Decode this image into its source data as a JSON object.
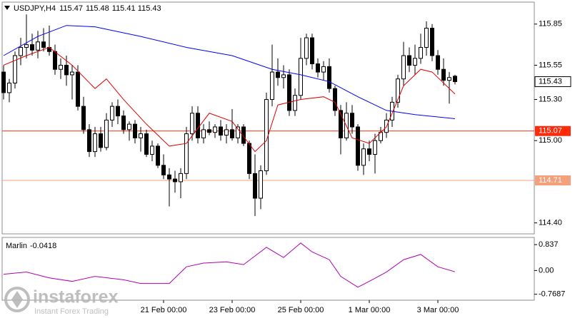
{
  "chart_data": {
    "type": "candlestick",
    "symbol": "USDJPY,H4",
    "categories": [
      null,
      null,
      null,
      null,
      null,
      null,
      null,
      null,
      null,
      null,
      null,
      null,
      null,
      null,
      null,
      null,
      null,
      null,
      null,
      null,
      null,
      null,
      null,
      null,
      null,
      null,
      null,
      null,
      "21 Feb 00:00",
      null,
      null,
      null,
      null,
      null,
      null,
      null,
      null,
      null,
      null,
      null,
      "23 Feb 00:00",
      null,
      null,
      null,
      null,
      null,
      null,
      null,
      null,
      null,
      null,
      null,
      "25 Feb 00:00",
      null,
      null,
      null,
      null,
      null,
      null,
      null,
      null,
      null,
      null,
      null,
      "1 Mar 00:00",
      null,
      null,
      null,
      null,
      null,
      null,
      null,
      null,
      null,
      null,
      null,
      "3 Mar 00:00",
      null,
      null,
      null
    ],
    "ohlc": [
      [
        115.5,
        115.55,
        115.3,
        115.35
      ],
      [
        115.35,
        115.45,
        115.28,
        115.42
      ],
      [
        115.42,
        115.65,
        115.38,
        115.62
      ],
      [
        115.62,
        115.75,
        115.55,
        115.68
      ],
      [
        115.68,
        115.92,
        115.6,
        115.7
      ],
      [
        115.7,
        115.78,
        115.62,
        115.66
      ],
      [
        115.66,
        115.8,
        115.6,
        115.72
      ],
      [
        115.72,
        115.82,
        115.65,
        115.68
      ],
      [
        115.68,
        115.84,
        115.62,
        115.65
      ],
      [
        115.65,
        115.7,
        115.48,
        115.52
      ],
      [
        115.52,
        115.6,
        115.45,
        115.55
      ],
      [
        115.55,
        115.62,
        115.4,
        115.48
      ],
      [
        115.48,
        115.55,
        115.3,
        115.5
      ],
      [
        115.5,
        115.55,
        115.22,
        115.25
      ],
      [
        115.25,
        115.32,
        115.05,
        115.08
      ],
      [
        115.08,
        115.12,
        114.88,
        114.92
      ],
      [
        114.92,
        115.1,
        114.88,
        115.05
      ],
      [
        115.05,
        115.1,
        114.92,
        114.95
      ],
      [
        114.95,
        115.2,
        114.93,
        115.15
      ],
      [
        115.15,
        115.28,
        115.1,
        115.25
      ],
      [
        115.25,
        115.3,
        115.12,
        115.18
      ],
      [
        115.18,
        115.22,
        115.05,
        115.08
      ],
      [
        115.08,
        115.14,
        115.0,
        115.12
      ],
      [
        115.12,
        115.15,
        114.98,
        115.02
      ],
      [
        115.02,
        115.1,
        114.92,
        115.05
      ],
      [
        115.05,
        115.08,
        114.88,
        114.9
      ],
      [
        114.9,
        115.0,
        114.85,
        114.96
      ],
      [
        114.96,
        114.98,
        114.8,
        114.82
      ],
      [
        114.82,
        114.9,
        114.72,
        114.75
      ],
      [
        114.75,
        114.8,
        114.52,
        114.72
      ],
      [
        114.72,
        114.78,
        114.62,
        114.7
      ],
      [
        114.7,
        114.8,
        114.58,
        114.76
      ],
      [
        114.76,
        115.1,
        114.72,
        115.05
      ],
      [
        115.05,
        115.25,
        115.0,
        115.2
      ],
      [
        115.2,
        115.25,
        114.98,
        115.02
      ],
      [
        115.02,
        115.12,
        114.98,
        115.08
      ],
      [
        115.08,
        115.14,
        115.04,
        115.06
      ],
      [
        115.06,
        115.12,
        115.02,
        115.1
      ],
      [
        115.1,
        115.15,
        115.0,
        115.04
      ],
      [
        115.04,
        115.12,
        114.98,
        115.08
      ],
      [
        115.08,
        115.23,
        115.0,
        115.02
      ],
      [
        115.02,
        115.12,
        114.98,
        115.1
      ],
      [
        115.1,
        115.12,
        114.96,
        114.98
      ],
      [
        114.98,
        115.0,
        114.72,
        114.76
      ],
      [
        114.76,
        114.9,
        114.45,
        114.58
      ],
      [
        114.58,
        114.82,
        114.5,
        114.78
      ],
      [
        114.78,
        115.35,
        114.75,
        115.3
      ],
      [
        115.3,
        115.7,
        115.25,
        115.5
      ],
      [
        115.5,
        115.6,
        115.4,
        115.46
      ],
      [
        115.46,
        115.55,
        115.38,
        115.48
      ],
      [
        115.48,
        115.52,
        115.18,
        115.22
      ],
      [
        115.22,
        115.38,
        115.18,
        115.33
      ],
      [
        115.33,
        115.75,
        115.3,
        115.6
      ],
      [
        115.6,
        115.78,
        115.55,
        115.75
      ],
      [
        115.75,
        115.78,
        115.52,
        115.56
      ],
      [
        115.56,
        115.6,
        115.46,
        115.5
      ],
      [
        115.5,
        115.58,
        115.44,
        115.54
      ],
      [
        115.54,
        115.6,
        115.35,
        115.38
      ],
      [
        115.38,
        115.4,
        115.18,
        115.22
      ],
      [
        115.22,
        115.26,
        114.9,
        115.02
      ],
      [
        115.02,
        115.28,
        115.0,
        115.2
      ],
      [
        115.2,
        115.26,
        115.05,
        115.1
      ],
      [
        115.1,
        115.12,
        114.78,
        114.82
      ],
      [
        114.82,
        114.98,
        114.75,
        114.94
      ],
      [
        114.94,
        115.0,
        114.85,
        114.9
      ],
      [
        114.9,
        115.05,
        114.76,
        115.0
      ],
      [
        115.0,
        115.1,
        114.98,
        115.06
      ],
      [
        115.06,
        115.2,
        115.02,
        115.15
      ],
      [
        115.15,
        115.32,
        115.1,
        115.28
      ],
      [
        115.28,
        115.48,
        115.24,
        115.45
      ],
      [
        115.45,
        115.72,
        115.4,
        115.62
      ],
      [
        115.62,
        115.68,
        115.5,
        115.55
      ],
      [
        115.55,
        115.7,
        115.48,
        115.6
      ],
      [
        115.6,
        115.78,
        115.56,
        115.68
      ],
      [
        115.68,
        115.87,
        115.62,
        115.82
      ],
      [
        115.82,
        115.85,
        115.58,
        115.62
      ],
      [
        115.62,
        115.66,
        115.48,
        115.52
      ],
      [
        115.52,
        115.6,
        115.4,
        115.44
      ],
      [
        115.44,
        115.5,
        115.27,
        115.46
      ],
      [
        115.47,
        115.48,
        115.41,
        115.43
      ]
    ],
    "up_color": "#ffffff",
    "down_color": "#000000",
    "ylim": [
      114.32,
      116.01
    ],
    "yticks": [
      115.85,
      115.55,
      {
        "value": 115.3,
        "label": "115.30"
      },
      {
        "value": 115,
        "label": "115.00"
      },
      {
        "value": 114.4,
        "label": "114.40"
      }
    ],
    "levels": [
      {
        "value": 115.07,
        "color": "#ff2a0a"
      },
      {
        "value": 114.71,
        "color": "#f4a07a"
      }
    ],
    "moving_averages": [
      {
        "color": "#0000ff",
        "x": [
          0,
          6,
          11,
          16,
          24,
          32,
          40,
          47,
          52,
          57,
          62,
          67,
          72,
          79
        ],
        "values": [
          115.62,
          115.76,
          115.84,
          115.83,
          115.76,
          115.68,
          115.62,
          115.52,
          115.48,
          115.43,
          115.32,
          115.22,
          115.19,
          115.16
        ]
      },
      {
        "color": "#e00000",
        "x": [
          0,
          4,
          8,
          12,
          16,
          18,
          21,
          25,
          29,
          32,
          36,
          40,
          44,
          46,
          48,
          52,
          56,
          58,
          61,
          64,
          67,
          70,
          73,
          75,
          79
        ],
        "values": [
          115.55,
          115.62,
          115.68,
          115.55,
          115.38,
          115.45,
          115.3,
          115.12,
          114.96,
          114.98,
          115.2,
          115.14,
          114.92,
          115.0,
          115.26,
          115.3,
          115.32,
          115.28,
          115.02,
          114.98,
          115.1,
          115.4,
          115.52,
          115.5,
          115.34
        ]
      }
    ],
    "indicator": {
      "name": "Marlin",
      "color": "#b000b0",
      "x": [
        0,
        4,
        8,
        12,
        16,
        21,
        24,
        29,
        32,
        35,
        39,
        42,
        46,
        49,
        52,
        54,
        57,
        59,
        62,
        64,
        67,
        70,
        73,
        76,
        79
      ],
      "values": [
        -0.12,
        -0.05,
        -0.24,
        -0.35,
        -0.19,
        -0.3,
        -0.42,
        -0.42,
        0.12,
        0.24,
        0.28,
        0.19,
        0.75,
        0.42,
        0.89,
        0.6,
        0.35,
        -0.19,
        -0.54,
        -0.35,
        -0.05,
        0.35,
        0.52,
        0.12,
        -0.0418
      ],
      "ylim": [
        -0.96,
        1.07
      ],
      "yticks": [
        0.837,
        {
          "value": 0,
          "label": "0.00"
        },
        -0.7687
      ]
    },
    "watermark": {
      "brand": "instaforex",
      "tagline": "Instant Forex Trading"
    }
  }
}
